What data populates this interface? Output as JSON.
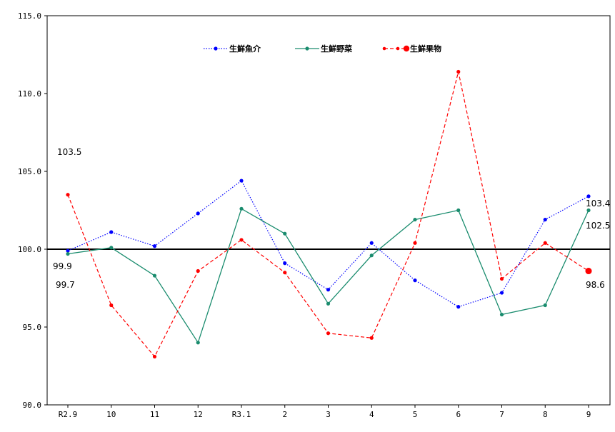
{
  "chart_data": {
    "type": "line",
    "categories": [
      "R2.9",
      "10",
      "11",
      "12",
      "R3.1",
      "2",
      "3",
      "4",
      "5",
      "6",
      "7",
      "8",
      "9"
    ],
    "ylim": [
      90.0,
      115.0
    ],
    "yticks": [
      "90.0",
      "95.0",
      "100.0",
      "105.0",
      "110.0",
      "115.0"
    ],
    "reference_line": 100.0,
    "grid": false,
    "legend_position": "top-center",
    "series": [
      {
        "name": "生鮮魚介",
        "color": "#0000ff",
        "style": "dotted",
        "marker": "dot",
        "values": [
          99.9,
          101.1,
          100.2,
          102.3,
          104.4,
          99.1,
          97.4,
          100.4,
          98.0,
          96.3,
          97.2,
          101.9,
          103.4
        ]
      },
      {
        "name": "生鮮野菜",
        "color": "#1a8c6e",
        "style": "solid",
        "marker": "dot",
        "values": [
          99.7,
          100.1,
          98.3,
          94.0,
          102.6,
          101.0,
          96.5,
          99.6,
          101.9,
          102.5,
          95.8,
          96.4,
          102.5
        ]
      },
      {
        "name": "生鮮果物",
        "color": "#ff0000",
        "style": "dashed",
        "marker": "dot",
        "values": [
          103.5,
          96.4,
          93.1,
          98.6,
          100.6,
          98.5,
          94.6,
          94.3,
          100.4,
          111.4,
          98.1,
          100.4,
          98.6
        ]
      }
    ],
    "data_labels": [
      {
        "text": "103.5"
      },
      {
        "text": "99.9"
      },
      {
        "text": "99.7"
      },
      {
        "text": "103.4"
      },
      {
        "text": "102.5"
      },
      {
        "text": "98.6"
      }
    ]
  }
}
